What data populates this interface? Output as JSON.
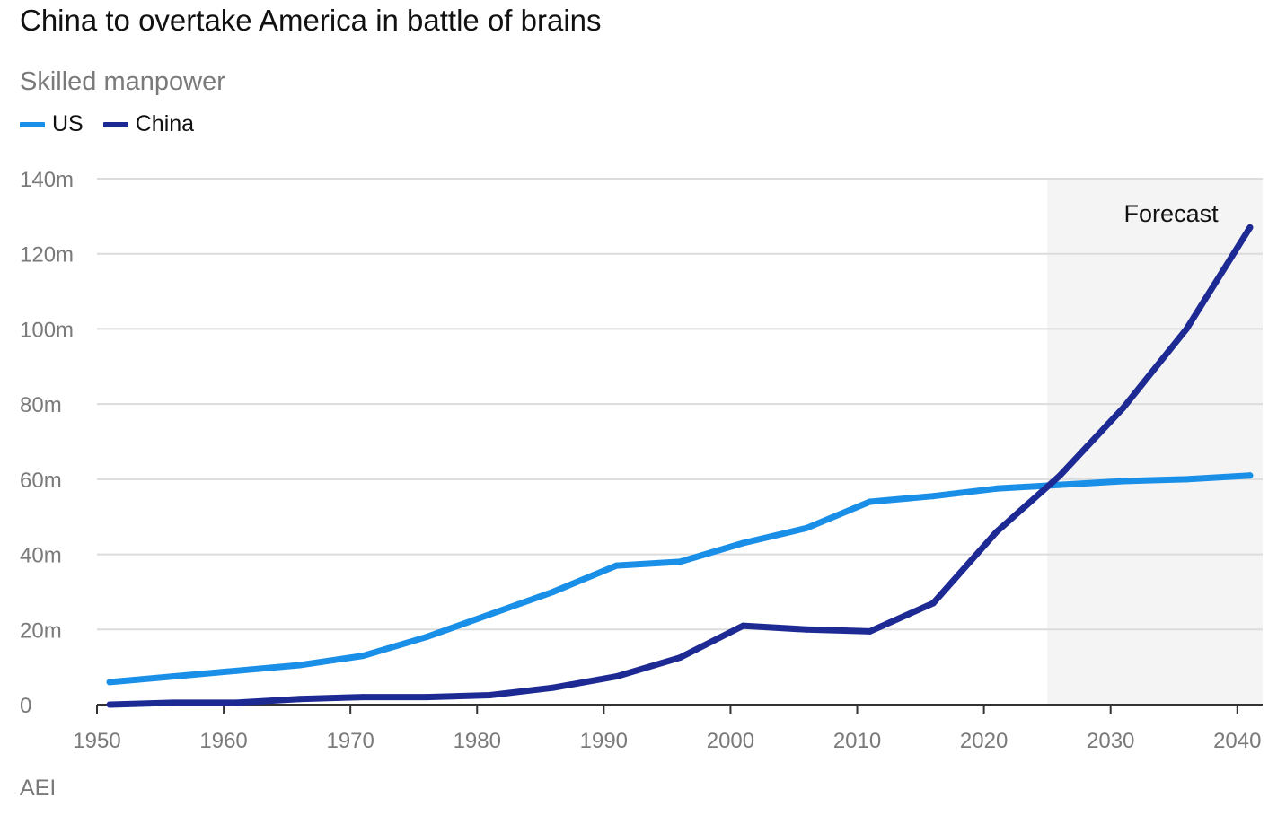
{
  "header": {
    "title": "China to overtake America in battle of brains",
    "subtitle": "Skilled manpower"
  },
  "legend": [
    {
      "label": "US",
      "color": "#1a8fe8"
    },
    {
      "label": "China",
      "color": "#1e2a94"
    }
  ],
  "source": "AEI",
  "chart_data": {
    "type": "line",
    "title": "China to overtake America in battle of brains",
    "subtitle": "Skilled manpower",
    "xlabel": "",
    "ylabel": "",
    "xlim": [
      1950,
      2042
    ],
    "ylim": [
      0,
      140
    ],
    "x_ticks": [
      1950,
      1960,
      1970,
      1980,
      1990,
      2000,
      2010,
      2020,
      2030,
      2040
    ],
    "x_tick_labels": [
      "1950",
      "1960",
      "1970",
      "1980",
      "1990",
      "2000",
      "2010",
      "2020",
      "2030",
      "2040"
    ],
    "y_ticks": [
      0,
      20,
      40,
      60,
      80,
      100,
      120,
      140
    ],
    "y_tick_labels": [
      "0",
      "20m",
      "40m",
      "60m",
      "80m",
      "100m",
      "120m",
      "140m"
    ],
    "grid": "horizontal",
    "annotation": {
      "label": "Forecast",
      "x_start": 2025,
      "x_end": 2042
    },
    "series": [
      {
        "name": "US",
        "color": "#1a8fe8",
        "x": [
          1951,
          1956,
          1961,
          1966,
          1971,
          1976,
          1981,
          1986,
          1991,
          1996,
          2001,
          2006,
          2011,
          2016,
          2021,
          2026,
          2031,
          2036,
          2041
        ],
        "values": [
          6,
          7.5,
          9,
          10.5,
          13,
          18,
          24,
          30,
          37,
          38,
          43,
          47,
          54,
          55.5,
          57.5,
          58.5,
          59.5,
          60,
          61
        ]
      },
      {
        "name": "China",
        "color": "#1e2a94",
        "x": [
          1951,
          1956,
          1961,
          1966,
          1971,
          1976,
          1981,
          1986,
          1991,
          1996,
          2001,
          2006,
          2011,
          2016,
          2021,
          2026,
          2031,
          2036,
          2041
        ],
        "values": [
          0,
          0.5,
          0.5,
          1.5,
          2,
          2,
          2.5,
          4.5,
          7.5,
          12.5,
          21,
          20,
          19.5,
          27,
          46,
          61,
          79,
          100,
          127
        ]
      }
    ]
  }
}
